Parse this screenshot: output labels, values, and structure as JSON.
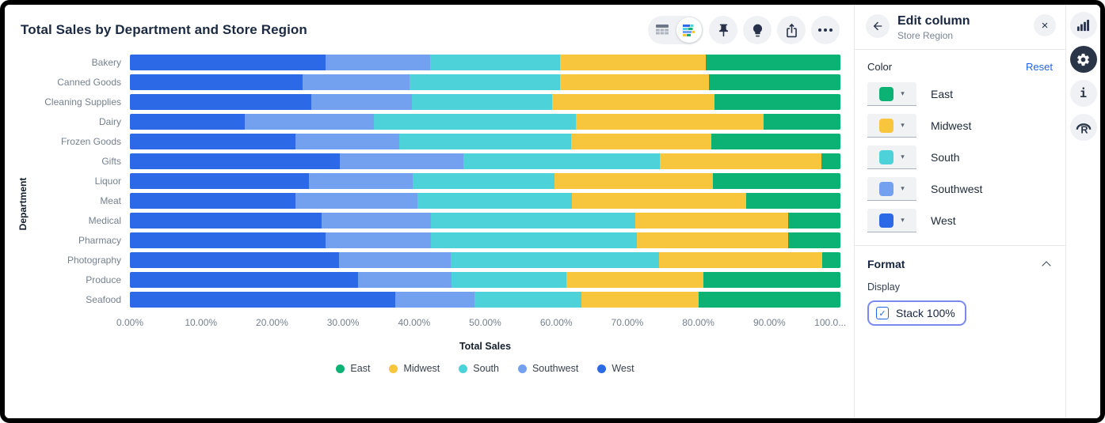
{
  "chart": {
    "title": "Total Sales by Department and Store Region"
  },
  "toolbar": {
    "table_view_icon": "table-grid",
    "chart_view_icon": "mini-stacked-bars",
    "pin_icon": "pushpin",
    "explore_icon": "lightbulb",
    "share_icon": "export-arrow",
    "more_icon": "ellipsis"
  },
  "chart_data": {
    "type": "bar",
    "orientation": "horizontal",
    "stacked": true,
    "stack_100_percent": true,
    "title": "Total Sales by Department and Store Region",
    "xlabel": "Total Sales",
    "ylabel": "Department",
    "xlim": [
      0,
      100
    ],
    "grid": false,
    "legend_position": "bottom",
    "categories": [
      "Bakery",
      "Canned Goods",
      "Cleaning Supplies",
      "Dairy",
      "Frozen Goods",
      "Gifts",
      "Liquor",
      "Meat",
      "Medical",
      "Pharmacy",
      "Photography",
      "Produce",
      "Seafood"
    ],
    "series": [
      {
        "name": "West",
        "color": "#2C69E6",
        "values": [
          27.5,
          24.3,
          25.5,
          16.2,
          23.3,
          29.5,
          25.2,
          23.3,
          27.0,
          27.5,
          29.4,
          32.1,
          37.4
        ]
      },
      {
        "name": "Southwest",
        "color": "#74A1EF",
        "values": [
          14.8,
          15.1,
          14.2,
          18.1,
          14.6,
          17.4,
          14.6,
          17.2,
          15.4,
          14.9,
          15.8,
          13.2,
          11.1
        ]
      },
      {
        "name": "South",
        "color": "#4DD2DA",
        "values": [
          18.2,
          21.1,
          19.7,
          28.5,
          24.2,
          27.7,
          20.0,
          21.7,
          28.7,
          29.0,
          29.3,
          16.1,
          15.0
        ]
      },
      {
        "name": "Midwest",
        "color": "#F8C63D",
        "values": [
          20.6,
          21.0,
          22.9,
          26.4,
          19.7,
          22.7,
          22.3,
          24.5,
          21.5,
          21.2,
          22.9,
          19.3,
          16.5
        ]
      },
      {
        "name": "East",
        "color": "#0BB273",
        "values": [
          18.9,
          18.5,
          17.7,
          10.8,
          18.2,
          2.7,
          17.9,
          13.3,
          7.4,
          7.4,
          2.6,
          19.3,
          20.0
        ]
      }
    ],
    "legend_items": [
      {
        "label": "East",
        "color": "#0BB273"
      },
      {
        "label": "Midwest",
        "color": "#F8C63D"
      },
      {
        "label": "South",
        "color": "#4DD2DA"
      },
      {
        "label": "Southwest",
        "color": "#74A1EF"
      },
      {
        "label": "West",
        "color": "#2C69E6"
      }
    ],
    "x_ticks": [
      "0.00%",
      "10.00%",
      "20.00%",
      "30.00%",
      "40.00%",
      "50.00%",
      "60.00%",
      "70.00%",
      "80.00%",
      "90.00%",
      "100.0..."
    ]
  },
  "panel": {
    "title": "Edit column",
    "subtitle": "Store Region",
    "back_icon": "arrow-left",
    "close_icon": "×",
    "color_section": {
      "label": "Color",
      "reset_label": "Reset",
      "caret_glyph": "▾",
      "rows": [
        {
          "name": "East",
          "color": "#0BB273"
        },
        {
          "name": "Midwest",
          "color": "#F8C63D"
        },
        {
          "name": "South",
          "color": "#4DD2DA"
        },
        {
          "name": "Southwest",
          "color": "#74A1EF"
        },
        {
          "name": "West",
          "color": "#2C69E6"
        }
      ]
    },
    "format_section": {
      "label": "Format",
      "display_label": "Display",
      "stack_checkbox_label": "Stack 100%",
      "checked": true,
      "check_glyph": "✓"
    }
  },
  "rail": {
    "info_glyph": "i",
    "icons": [
      "column-chart",
      "settings-gear",
      "info",
      "r-logo"
    ]
  }
}
